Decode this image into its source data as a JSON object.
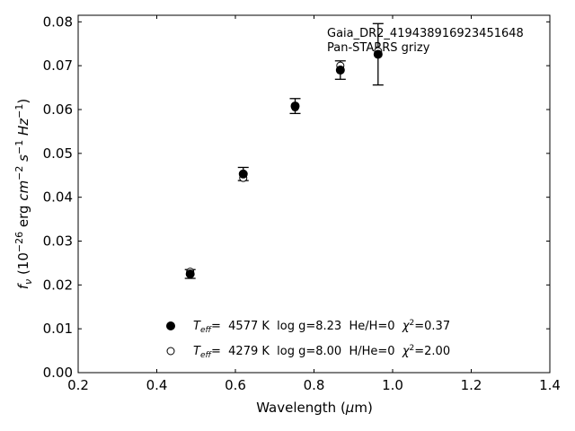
{
  "chart_data": {
    "type": "scatter",
    "xlabel": "Wavelength (μm)",
    "ylabel": "f_ν (10^-26 erg cm^-2 s^-1 Hz^-1)",
    "xlim": [
      0.2,
      1.4
    ],
    "ylim": [
      0.0,
      0.0815
    ],
    "grid": false,
    "x_ticks": [
      0.2,
      0.4,
      0.6,
      0.8,
      1.0,
      1.2,
      1.4
    ],
    "x_tick_labels": [
      "0.2",
      "0.4",
      "0.6",
      "0.8",
      "1.0",
      "1.2",
      "1.4"
    ],
    "y_ticks": [
      0.0,
      0.01,
      0.02,
      0.03,
      0.04,
      0.05,
      0.06,
      0.07,
      0.08
    ],
    "y_tick_labels": [
      "0.00",
      "0.01",
      "0.02",
      "0.03",
      "0.04",
      "0.05",
      "0.06",
      "0.07",
      "0.08"
    ],
    "annotation": {
      "line1": "Gaia_DR2_419438916923451648",
      "line2": "Pan-STARRS grizy"
    },
    "observed": {
      "x": [
        0.485,
        0.62,
        0.752,
        0.867,
        0.963
      ],
      "y": [
        0.0225,
        0.0453,
        0.0608,
        0.069,
        0.0726
      ],
      "yerr": [
        0.001,
        0.0015,
        0.0017,
        0.0021,
        0.007
      ]
    },
    "series": [
      {
        "marker": "filled",
        "x": [
          0.485,
          0.62,
          0.752,
          0.867,
          0.963
        ],
        "y": [
          0.0225,
          0.0453,
          0.0608,
          0.069,
          0.0726
        ],
        "legend": {
          "teff_symbol": "T",
          "teff_sub": "eff",
          "rest": "=  4577 K  log g=8.23  He/H=0  ",
          "chi_symbol": "χ",
          "chi_sup": "2",
          "chi_value": "=0.37"
        }
      },
      {
        "marker": "open",
        "x": [
          0.485,
          0.62,
          0.752,
          0.867,
          0.963
        ],
        "y": [
          0.023,
          0.0444,
          0.0605,
          0.07,
          0.0733
        ],
        "legend": {
          "teff_symbol": "T",
          "teff_sub": "eff",
          "rest": "=  4279 K  log g=8.00  H/He=0  ",
          "chi_symbol": "χ",
          "chi_sup": "2",
          "chi_value": "=2.00"
        }
      }
    ],
    "legend_placement": "lower-center"
  }
}
